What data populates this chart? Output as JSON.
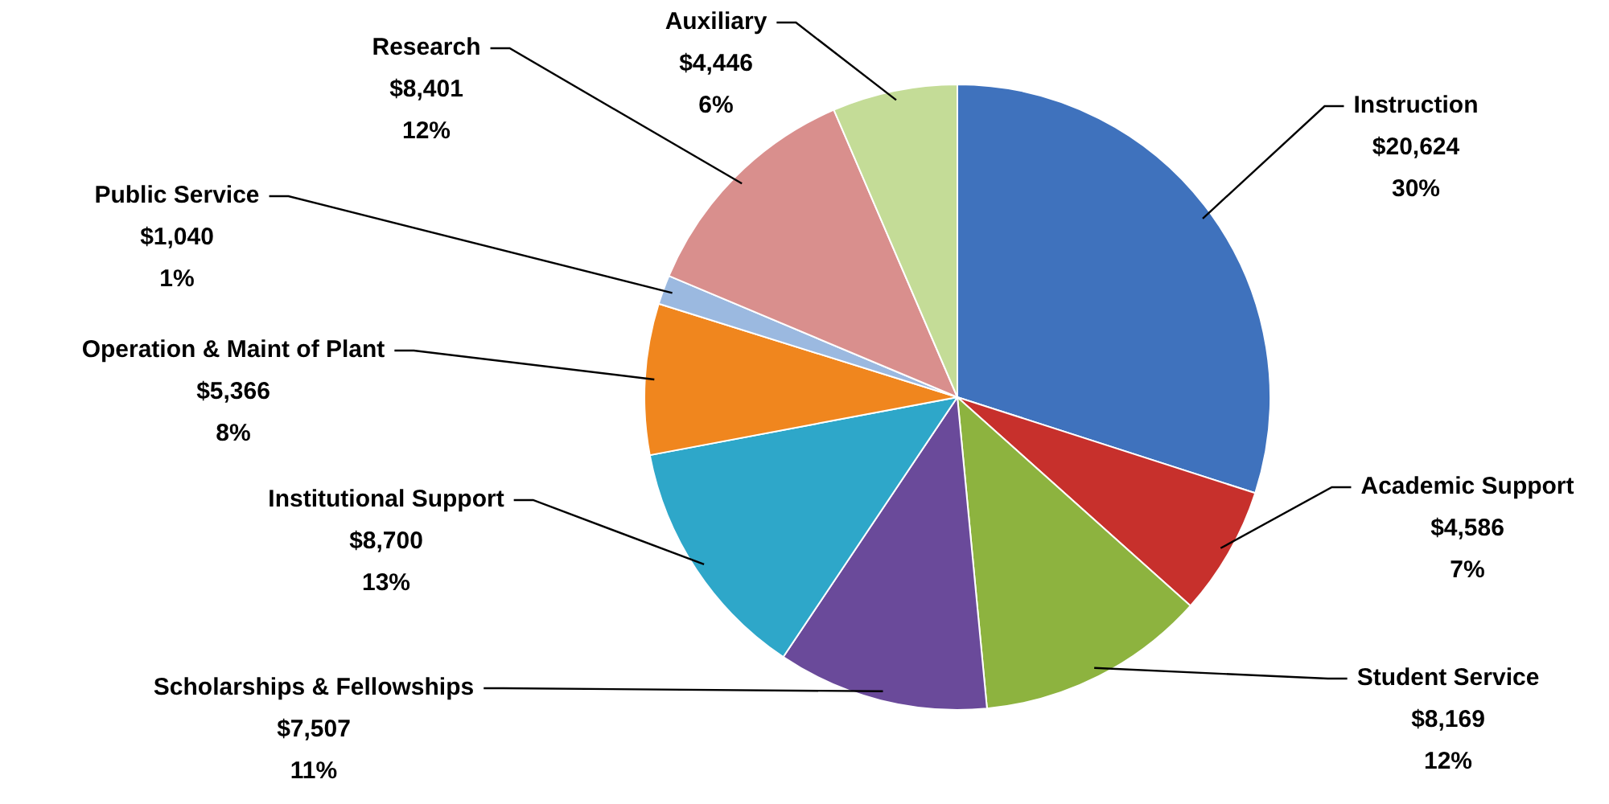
{
  "chart_data": {
    "type": "pie",
    "categories": [
      "Instruction",
      "Academic Support",
      "Student Service",
      "Scholarships & Fellowships",
      "Institutional Support",
      "Operation & Maint of Plant",
      "Public Service",
      "Research",
      "Auxiliary"
    ],
    "values": [
      20624,
      4586,
      8169,
      7507,
      8700,
      5366,
      1040,
      8401,
      4446
    ],
    "value_labels": [
      "$20,624\n30%",
      "$4,586\n7%",
      "$8,169\n12%",
      "$7,507\n11%",
      "$8,700\n13%",
      "$5,366\n8%",
      "$1,040\n1%",
      "$8,401\n12%",
      "$4,446\n6%"
    ],
    "colors": [
      "#3f72bd",
      "#c7302c",
      "#8db33f",
      "#6a4a9a",
      "#2ea7c9",
      "#f0861e",
      "#9bb9e0",
      "#d98f8d",
      "#c4dc97"
    ],
    "legend": false
  }
}
